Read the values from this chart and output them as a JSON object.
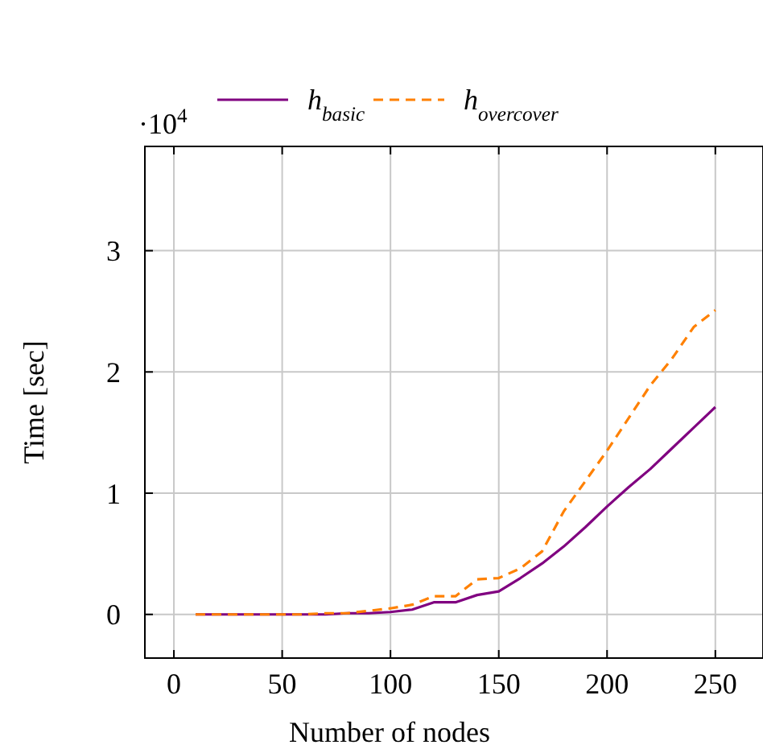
{
  "chart_data": {
    "type": "line",
    "xlabel": "Number of nodes",
    "ylabel": "Time [sec]",
    "annotations": [
      "·10$^{4}$"
    ],
    "x": [
      10,
      20,
      30,
      40,
      50,
      60,
      70,
      80,
      90,
      100,
      110,
      120,
      130,
      140,
      150,
      160,
      170,
      180,
      190,
      200,
      210,
      220,
      230,
      240,
      250
    ],
    "series": [
      {
        "name": "h$_{basic}$",
        "color": "#800080",
        "line_style": "solid",
        "values": [
          0,
          0,
          0,
          0,
          0,
          0,
          0,
          0.01,
          0.01,
          0.02,
          0.04,
          0.1,
          0.1,
          0.16,
          0.19,
          0.3,
          0.42,
          0.56,
          0.72,
          0.89,
          1.05,
          1.2,
          1.37,
          1.54,
          1.71
        ]
      },
      {
        "name": "h$_{overcover}$",
        "color": "#ff8000",
        "line_style": "dashed",
        "values": [
          0,
          0,
          0,
          0,
          0,
          0,
          0.01,
          0.01,
          0.03,
          0.05,
          0.08,
          0.15,
          0.15,
          0.29,
          0.3,
          0.38,
          0.52,
          0.85,
          1.1,
          1.35,
          1.62,
          1.89,
          2.11,
          2.37,
          2.51
        ]
      }
    ],
    "xlim": [
      -13.4,
      272
    ],
    "ylim": [
      -0.36,
      3.86
    ],
    "xticks": [
      0,
      50,
      100,
      150,
      200,
      250
    ],
    "yticks": [
      0,
      1,
      2,
      3
    ],
    "grid": true,
    "legend": "top",
    "marker": "none"
  }
}
